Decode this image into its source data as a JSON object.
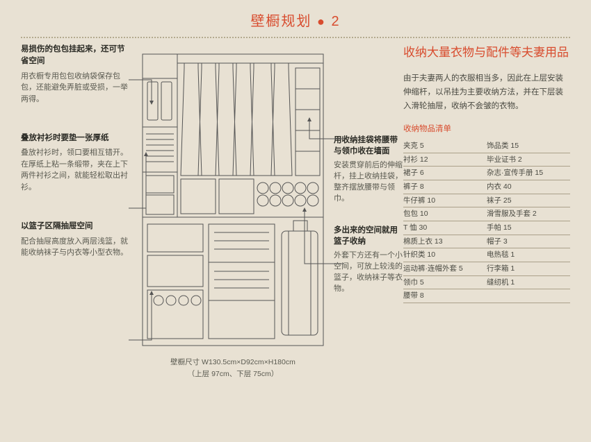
{
  "header": {
    "title": "壁橱规划",
    "num": "2"
  },
  "left": {
    "c1": {
      "title": "易损伤的包包挂起来，还可节省空间",
      "body": "用衣橱专用包包收纳袋保存包包，还能避免弄脏或受损，一举两得。"
    },
    "c2": {
      "title": "叠放衬衫时要垫一张厚纸",
      "body": "叠放衬衫时，领口要相互错开。在厚纸上粘一条缎带，夹在上下两件衬衫之间，就能轻松取出衬衫。"
    },
    "c3": {
      "title": "以篮子区隔抽屉空间",
      "body": "配合抽屉高度放入两层浅篮，就能收纳袜子与内衣等小型衣物。"
    }
  },
  "mid": {
    "m1": {
      "title": "用收纳挂袋将腰带与领巾收在墙面",
      "body": "安装贯穿前后的伸缩杆，挂上收纳挂袋，整齐摆放腰带与领巾。"
    },
    "m2": {
      "title": "多出来的空间就用篮子收纳",
      "body": "外套下方还有一个小空间，可放上较浅的篮子，收纳袜子等衣物。"
    }
  },
  "right": {
    "title": "收纳大量衣物与配件等夫妻用品",
    "intro": "由于夫妻两人的衣服相当多，因此在上层安装伸缩杆，以吊挂为主要收纳方法，并在下层装入滑轮抽屉，收纳不会皱的衣物。",
    "listHeader": "收纳物品清单",
    "rows": [
      [
        "夹克 5",
        "饰品类 15"
      ],
      [
        "衬衫 12",
        "毕业证书 2"
      ],
      [
        "裙子 6",
        "杂志·宣传手册 15"
      ],
      [
        "裤子 8",
        "内衣 40"
      ],
      [
        "牛仔裤 10",
        "袜子 25"
      ],
      [
        "包包 10",
        "滑雪服及手套 2"
      ],
      [
        "T 恤 30",
        "手帕 15"
      ],
      [
        "棉质上衣 13",
        "帽子 3"
      ],
      [
        "针织类 10",
        "电热毯 1"
      ],
      [
        "运动裤·连帽外套 5",
        "行李箱 1"
      ],
      [
        "领巾 5",
        "缝纫机 1"
      ],
      [
        "腰带 8",
        ""
      ]
    ]
  },
  "dims": {
    "line1": "壁橱尺寸 W130.5cm×D92cm×H180cm",
    "line2": "（上层 97cm、下层 75cm）"
  },
  "style": {
    "accent": "#d84c2e",
    "bg": "#e8e1d3",
    "lineColor": "#555",
    "borderColor": "#aaa08a"
  }
}
